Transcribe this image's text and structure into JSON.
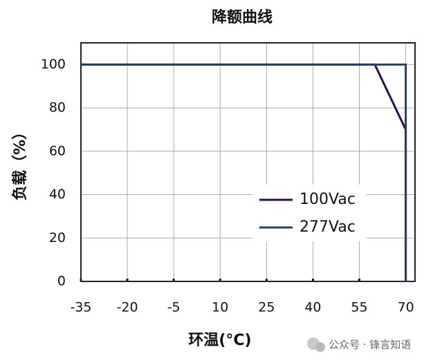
{
  "chart_data": {
    "type": "line",
    "title": "降额曲线",
    "xlabel": "环温(°C)",
    "ylabel": "负载（%）",
    "series": [
      {
        "name": "100Vac",
        "color": "#2b0d4d",
        "x": [
          -35,
          60,
          70,
          70
        ],
        "values": [
          100,
          100,
          70,
          0
        ]
      },
      {
        "name": "277Vac",
        "color": "#1f4068",
        "x": [
          -35,
          70,
          70
        ],
        "values": [
          100,
          100,
          0
        ]
      }
    ],
    "xlim": [
      -35,
      73
    ],
    "ylim": [
      0,
      110
    ],
    "xticks": [
      -35,
      -20,
      -5,
      10,
      25,
      40,
      55,
      70
    ],
    "yticks": [
      0,
      20,
      40,
      60,
      80,
      100
    ],
    "grid": true,
    "legend": "lower right"
  },
  "watermark": "公众号 · 锋言知语"
}
